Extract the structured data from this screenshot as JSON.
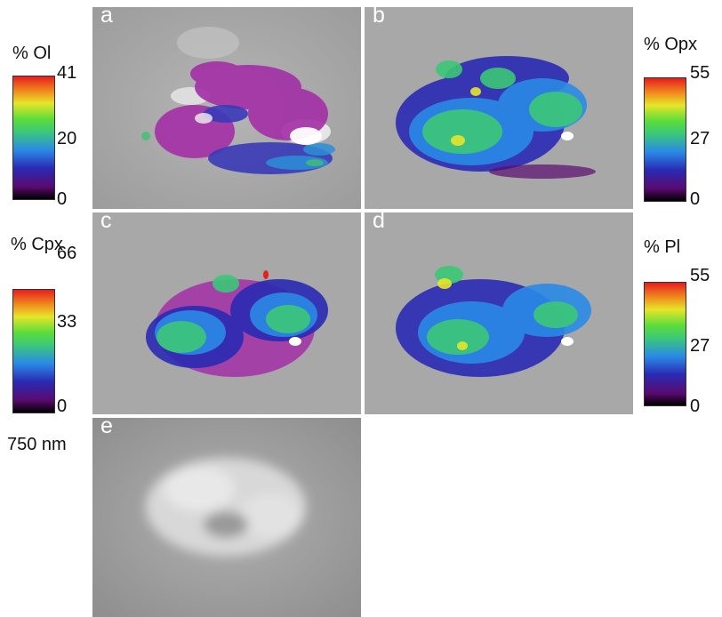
{
  "panels": {
    "a": "a",
    "b": "b",
    "c": "c",
    "d": "d",
    "e": "e"
  },
  "colorbars": {
    "ol": {
      "title": "% Ol",
      "max": "41",
      "mid": "20",
      "min": "0"
    },
    "opx": {
      "title": "% Opx",
      "max": "55",
      "mid": "27",
      "min": "0"
    },
    "cpx": {
      "title": "% Cpx",
      "max": "66",
      "mid": "33",
      "min": "0"
    },
    "pl": {
      "title": "% Pl",
      "max": "55",
      "mid": "27",
      "min": "0"
    }
  },
  "image_e_label": "750 nm",
  "colors": {
    "background": "#ffffff",
    "surface_gray": "#a9a9a9",
    "colormap": [
      "#000000",
      "#5a0a6e",
      "#2a2ab4",
      "#2a8ae6",
      "#3cc878",
      "#5adc3c",
      "#e6e628",
      "#f08c1e",
      "#e61e1e"
    ]
  }
}
